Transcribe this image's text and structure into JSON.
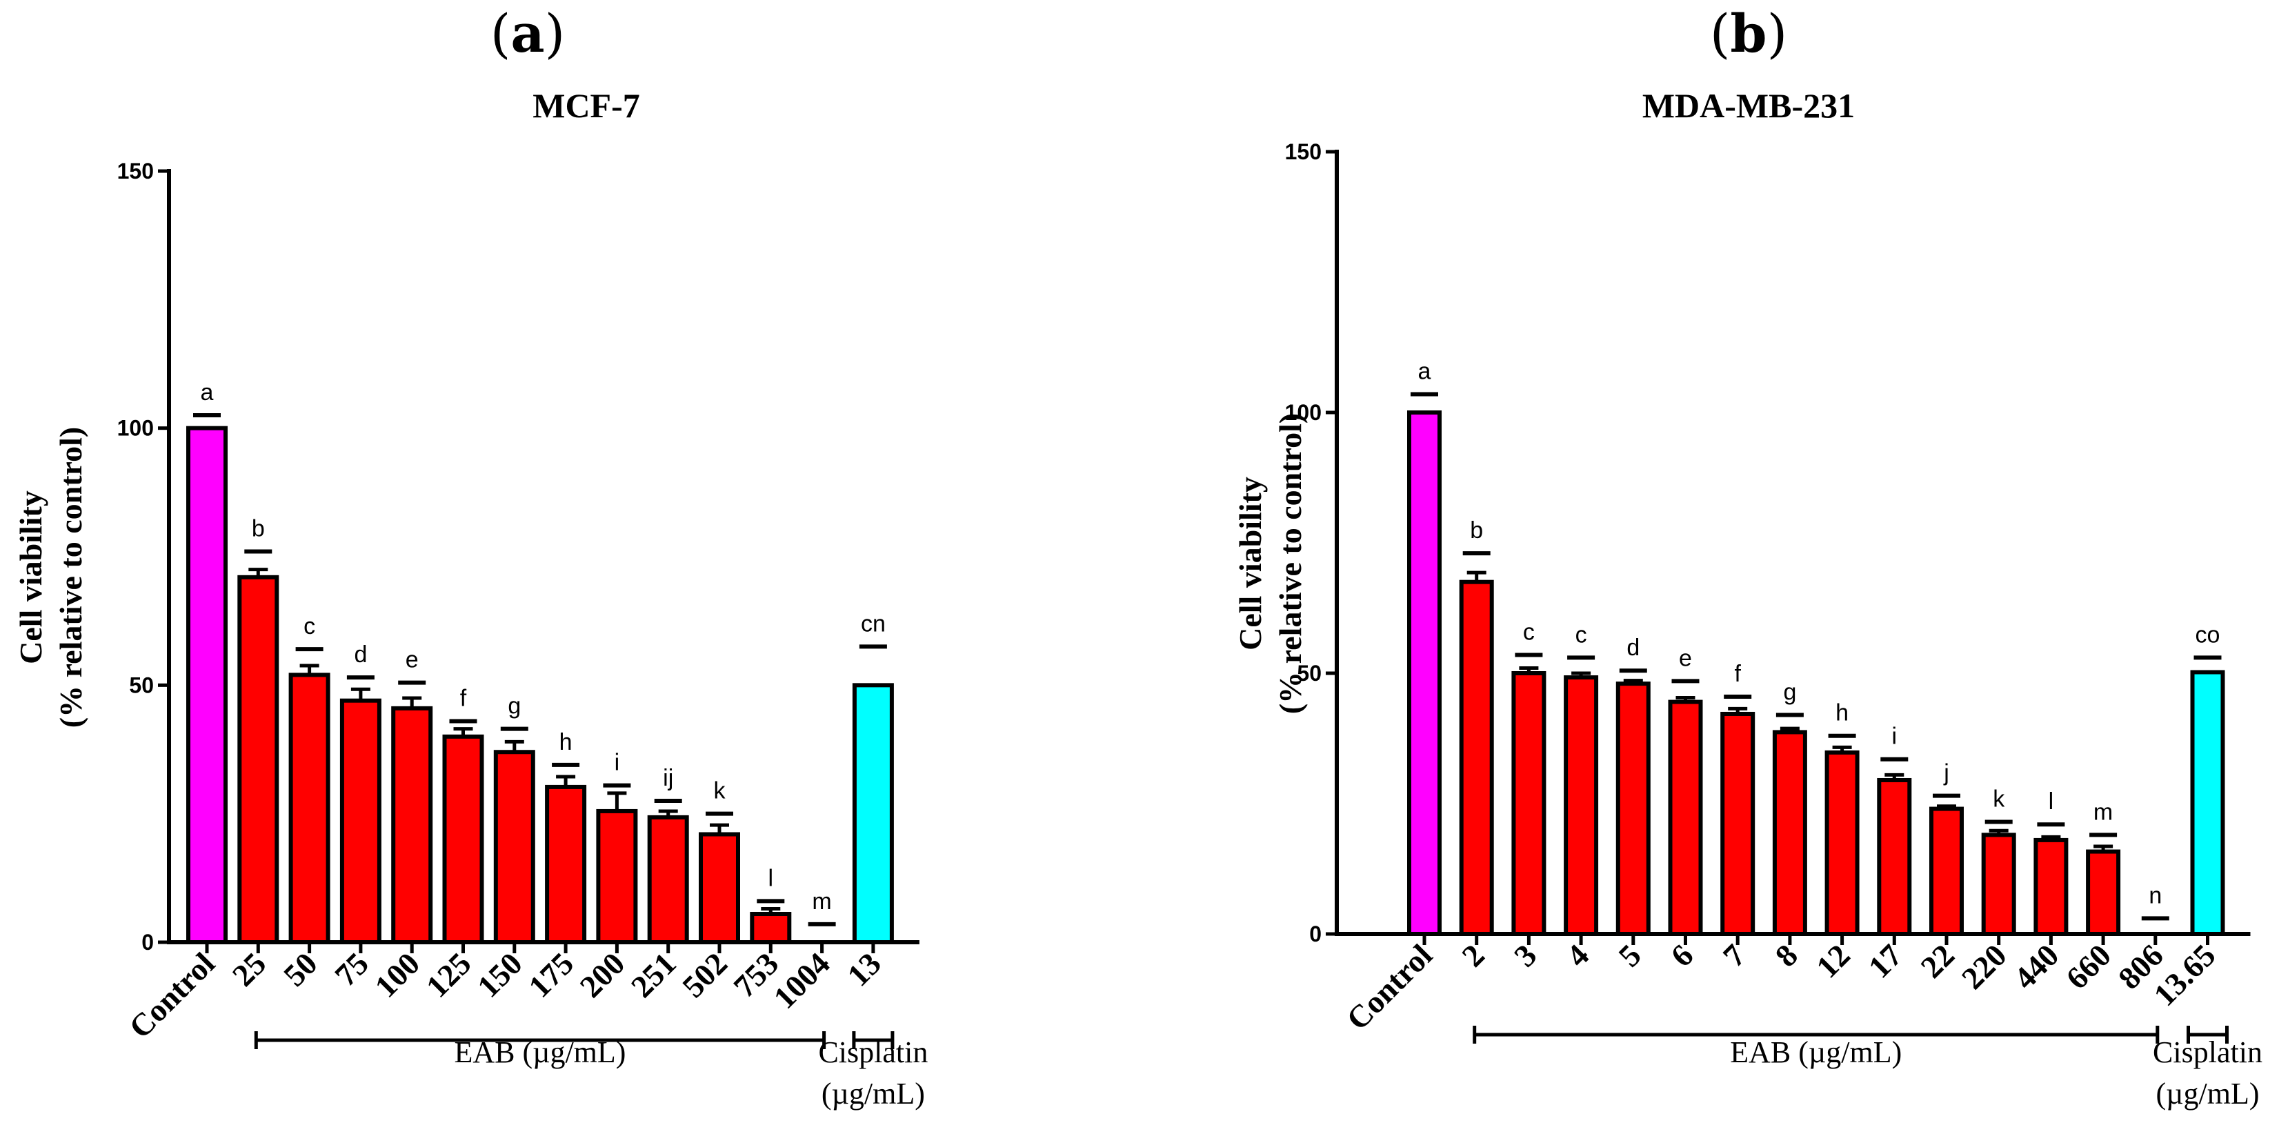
{
  "colors": {
    "control": "#ff00ff",
    "eab": "#ff0000",
    "cisplatin": "#00ffff"
  },
  "chart_data": [
    {
      "type": "bar",
      "panel": "(a)",
      "title": "MCF-7",
      "ylabel_line1": "Cell viability",
      "ylabel_line2": "(% relative to control)",
      "ylim": [
        0,
        150
      ],
      "yticks": [
        0,
        50,
        100,
        150
      ],
      "categories": [
        "Control",
        "25",
        "50",
        "75",
        "100",
        "125",
        "150",
        "175",
        "200",
        "251",
        "502",
        "753",
        "1004",
        "13"
      ],
      "values": [
        100,
        71,
        52,
        47,
        45.5,
        40,
        37,
        30.2,
        25.5,
        24.3,
        21,
        5.5,
        0,
        50
      ],
      "errors": [
        0,
        1.5,
        1.8,
        2.2,
        2.0,
        1.5,
        2.0,
        2.0,
        3.5,
        1.2,
        1.8,
        1.0,
        0,
        0
      ],
      "groups": [
        "control",
        "eab",
        "eab",
        "eab",
        "eab",
        "eab",
        "eab",
        "eab",
        "eab",
        "eab",
        "eab",
        "eab",
        "eab",
        "cisplatin"
      ],
      "significance_letters": [
        "a",
        "b",
        "c",
        "d",
        "e",
        "f",
        "g",
        "h",
        "i",
        "ij",
        "k",
        "l",
        "m",
        "cn"
      ],
      "significance_levels": [
        102.5,
        76,
        57,
        51.5,
        50.5,
        43,
        41.5,
        34.5,
        30.5,
        27.5,
        25,
        8,
        3.5,
        57.5
      ],
      "group_labels": {
        "eab": "EAB (µg/mL)",
        "cisplatin_line1": "Cisplatin",
        "cisplatin_line2": "(µg/mL)"
      }
    },
    {
      "type": "bar",
      "panel": "(b)",
      "title": "MDA-MB-231",
      "ylabel_line1": "Cell viability",
      "ylabel_line2": "(% relative to control)",
      "ylim": [
        0,
        150
      ],
      "yticks": [
        0,
        50,
        100,
        150
      ],
      "categories": [
        "Control",
        "2",
        "3",
        "4",
        "5",
        "6",
        "7",
        "8",
        "12",
        "17",
        "22",
        "220",
        "440",
        "660",
        "806",
        "13.65"
      ],
      "values": [
        100,
        67.5,
        50,
        49.2,
        48,
        44.5,
        42.2,
        38.7,
        34.8,
        29.5,
        24,
        19,
        18,
        15.8,
        0,
        50.2
      ],
      "errors": [
        0,
        1.8,
        1.0,
        0.8,
        0.6,
        0.8,
        1.0,
        0.7,
        1.0,
        1.0,
        0.5,
        0.8,
        0.6,
        1.0,
        0,
        0
      ],
      "groups": [
        "control",
        "eab",
        "eab",
        "eab",
        "eab",
        "eab",
        "eab",
        "eab",
        "eab",
        "eab",
        "eab",
        "eab",
        "eab",
        "eab",
        "eab",
        "cisplatin"
      ],
      "significance_letters": [
        "a",
        "b",
        "c",
        "c",
        "d",
        "e",
        "f",
        "g",
        "h",
        "i",
        "j",
        "k",
        "l",
        "m",
        "n",
        "co"
      ],
      "significance_levels": [
        103.5,
        73,
        53.5,
        53,
        50.5,
        48.5,
        45.5,
        42,
        38,
        33.5,
        26.5,
        21.5,
        21,
        19,
        3,
        53
      ],
      "group_labels": {
        "eab": "EAB (µg/mL)",
        "cisplatin_line1": "Cisplatin",
        "cisplatin_line2": "(µg/mL)"
      }
    }
  ]
}
